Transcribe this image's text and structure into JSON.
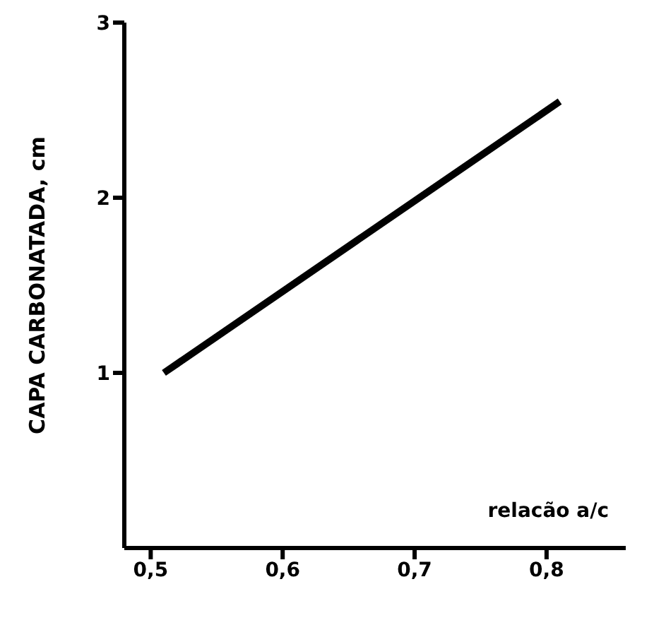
{
  "chart_data": {
    "type": "line",
    "xlabel": "relacão a/c",
    "ylabel": "CAPA CARBONATADA, cm",
    "x": [
      0.51,
      0.81
    ],
    "series": [
      {
        "color": "#000000",
        "values": [
          1.0,
          2.55
        ]
      }
    ],
    "xlim": [
      0.48,
      0.86
    ],
    "xticks": [
      {
        "value": 0.5,
        "label": "0,5"
      },
      {
        "value": 0.6,
        "label": "0,6"
      },
      {
        "value": 0.7,
        "label": "0,7"
      },
      {
        "value": 0.8,
        "label": "0,8"
      }
    ],
    "ylim": [
      0,
      3
    ],
    "yticks": [
      1,
      2,
      3
    ],
    "grid": false,
    "legend": false,
    "marker": "none",
    "line_style": "solid"
  }
}
